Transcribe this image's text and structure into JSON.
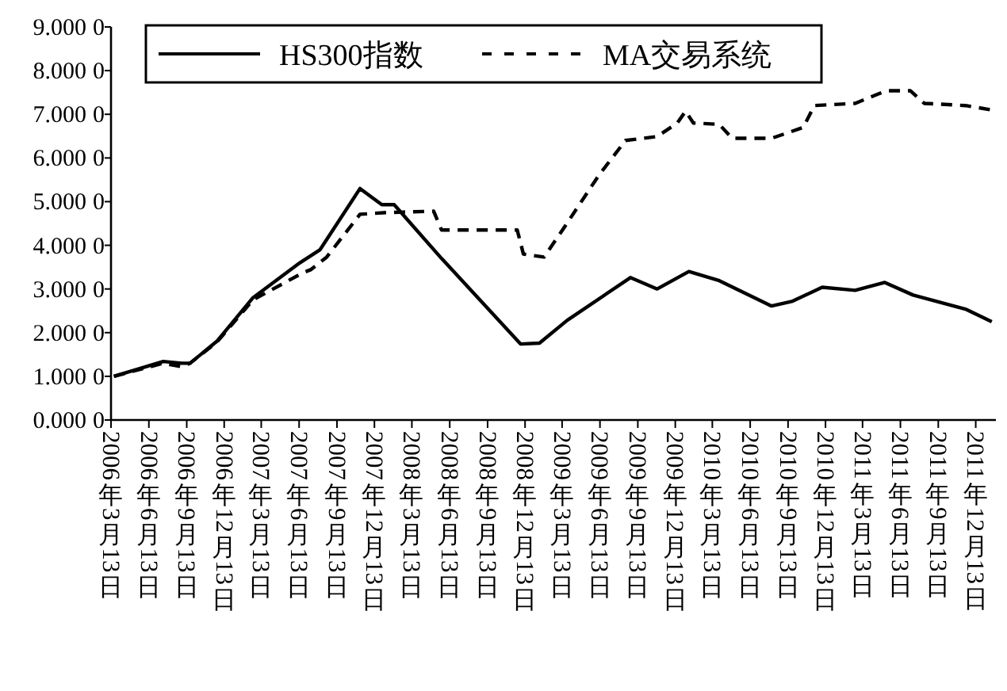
{
  "chart_data": {
    "type": "line",
    "series": [
      {
        "name": "HS300指数",
        "color": "#000000",
        "line_style": "solid",
        "x": [
          "2006-03-20",
          "2006-07-18",
          "2006-09-01",
          "2006-09-21",
          "2006-11-25",
          "2007-02-21",
          "2007-06-15",
          "2007-08-03",
          "2007-11-08",
          "2007-12-31",
          "2008-01-30",
          "2008-05-24",
          "2008-12-02",
          "2009-01-17",
          "2009-03-25",
          "2009-08-26",
          "2009-10-30",
          "2010-01-15",
          "2010-03-30",
          "2010-08-04",
          "2010-09-24",
          "2010-12-05",
          "2011-02-23",
          "2011-05-06",
          "2011-07-14",
          "2011-11-18",
          "2012-01-21"
        ],
        "values": [
          1.0,
          1.34,
          1.3,
          1.3,
          1.8,
          2.8,
          3.6,
          3.9,
          5.3,
          4.93,
          4.93,
          3.7,
          1.74,
          1.76,
          2.28,
          3.26,
          3.0,
          3.4,
          3.19,
          2.61,
          2.72,
          3.04,
          2.97,
          3.15,
          2.86,
          2.54,
          2.25
        ]
      },
      {
        "name": "MA交易系统",
        "color": "#000000",
        "line_style": "dashed",
        "x": [
          "2006-03-20",
          "2006-07-18",
          "2006-09-01",
          "2006-09-21",
          "2006-11-25",
          "2007-02-21",
          "2007-06-22",
          "2007-07-11",
          "2007-08-19",
          "2007-11-08",
          "2008-01-11",
          "2008-05-05",
          "2008-05-24",
          "2008-11-24",
          "2008-12-09",
          "2009-01-28",
          "2009-03-14",
          "2009-06-10",
          "2009-08-14",
          "2009-10-30",
          "2009-12-18",
          "2010-01-07",
          "2010-01-26",
          "2010-03-30",
          "2010-04-30",
          "2010-08-04",
          "2010-10-20",
          "2010-11-16",
          "2011-02-23",
          "2011-05-10",
          "2011-07-07",
          "2011-08-10",
          "2011-11-18",
          "2012-01-21"
        ],
        "values": [
          1.0,
          1.3,
          1.22,
          1.3,
          1.78,
          2.75,
          3.37,
          3.44,
          3.73,
          4.71,
          4.75,
          4.78,
          4.35,
          4.35,
          3.8,
          3.73,
          4.35,
          5.6,
          6.4,
          6.49,
          6.8,
          7.07,
          6.8,
          6.77,
          6.45,
          6.45,
          6.7,
          7.2,
          7.25,
          7.54,
          7.54,
          7.25,
          7.2,
          7.1
        ]
      }
    ],
    "xlim": [
      "2006-03-13",
      "2012-01-31"
    ],
    "xticks": [
      {
        "value": "2006-03-13",
        "label": "2006年3月13日"
      },
      {
        "value": "2006-06-13",
        "label": "2006年6月13日"
      },
      {
        "value": "2006-09-13",
        "label": "2006年9月13日"
      },
      {
        "value": "2006-12-13",
        "label": "2006年12月13日"
      },
      {
        "value": "2007-03-13",
        "label": "2007年3月13日"
      },
      {
        "value": "2007-06-13",
        "label": "2007年6月13日"
      },
      {
        "value": "2007-09-13",
        "label": "2007年9月13日"
      },
      {
        "value": "2007-12-13",
        "label": "2007年12月13日"
      },
      {
        "value": "2008-03-13",
        "label": "2008年3月13日"
      },
      {
        "value": "2008-06-13",
        "label": "2008年6月13日"
      },
      {
        "value": "2008-09-13",
        "label": "2008年9月13日"
      },
      {
        "value": "2008-12-13",
        "label": "2008年12月13日"
      },
      {
        "value": "2009-03-13",
        "label": "2009年3月13日"
      },
      {
        "value": "2009-06-13",
        "label": "2009年6月13日"
      },
      {
        "value": "2009-09-13",
        "label": "2009年9月13日"
      },
      {
        "value": "2009-12-13",
        "label": "2009年12月13日"
      },
      {
        "value": "2010-03-13",
        "label": "2010年3月13日"
      },
      {
        "value": "2010-06-13",
        "label": "2010年6月13日"
      },
      {
        "value": "2010-09-13",
        "label": "2010年9月13日"
      },
      {
        "value": "2010-12-13",
        "label": "2010年12月13日"
      },
      {
        "value": "2011-03-13",
        "label": "2011年3月13日"
      },
      {
        "value": "2011-06-13",
        "label": "2011年6月13日"
      },
      {
        "value": "2011-09-13",
        "label": "2011年9月13日"
      },
      {
        "value": "2011-12-13",
        "label": "2011年12月13日"
      }
    ],
    "ylim": [
      0,
      9
    ],
    "yticks": [
      {
        "value": 0,
        "label": "0.0000"
      },
      {
        "value": 1,
        "label": "1.0000"
      },
      {
        "value": 2,
        "label": "2.0000"
      },
      {
        "value": 3,
        "label": "3.0000"
      },
      {
        "value": 4,
        "label": "4.0000"
      },
      {
        "value": 5,
        "label": "5.0000"
      },
      {
        "value": 6,
        "label": "6.0000"
      },
      {
        "value": 7,
        "label": "7.0000"
      },
      {
        "value": 8,
        "label": "8.0000"
      },
      {
        "value": 9,
        "label": "9.0000"
      }
    ],
    "grid": false,
    "legend": "top left"
  }
}
